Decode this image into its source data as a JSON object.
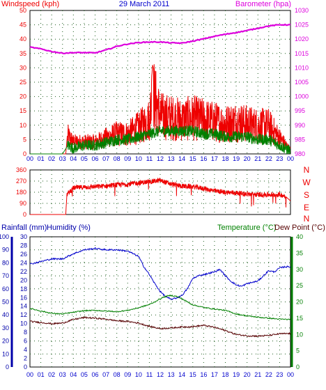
{
  "colors": {
    "red": "#ee0000",
    "blue": "#0000cc",
    "dkblue": "#0000aa",
    "green": "#008000",
    "magenta": "#dd00dd",
    "brown": "#550000",
    "grid": "#1a5a1a"
  },
  "chart_data": [
    {
      "type": "line",
      "title": "29 March 2011",
      "left_axis_label": "Windspeed (kph)",
      "right_axis_label": "Barometer (hpa)",
      "x_ticks": [
        "00",
        "01",
        "02",
        "03",
        "04",
        "05",
        "06",
        "07",
        "08",
        "09",
        "10",
        "11",
        "12",
        "13",
        "14",
        "15",
        "16",
        "17",
        "18",
        "19",
        "20",
        "21",
        "22",
        "23",
        "00"
      ],
      "left_ticks": [
        "0",
        "5",
        "10",
        "15",
        "20",
        "25",
        "30",
        "35",
        "40",
        "45",
        "50"
      ],
      "right_ticks": [
        "980",
        "985",
        "990",
        "995",
        "1000",
        "1005",
        "1010",
        "1015",
        "1020",
        "1025",
        "1030"
      ],
      "ylim_left": [
        0,
        50
      ],
      "ylim_right": [
        980,
        1030
      ],
      "grid": true,
      "series": [
        {
          "name": "Barometer",
          "axis": "right",
          "color_key": "magenta",
          "x": [
            0,
            1,
            2,
            3,
            4,
            5,
            6,
            7,
            8,
            9,
            10,
            11,
            12,
            13,
            14,
            15,
            16,
            17,
            18,
            19,
            20,
            21,
            22,
            23,
            24
          ],
          "y": [
            1017.2,
            1016.6,
            1015.7,
            1015.1,
            1015.3,
            1015.3,
            1015.2,
            1016.2,
            1017.5,
            1018.3,
            1018.8,
            1019.0,
            1019.0,
            1018.7,
            1018.6,
            1019.3,
            1020.1,
            1021.0,
            1021.7,
            1022.3,
            1023.0,
            1023.8,
            1024.6,
            1025.0,
            1025.0
          ]
        },
        {
          "name": "Wind gust",
          "axis": "left",
          "color_key": "red",
          "x": [
            0,
            1,
            2,
            3,
            3.3,
            3.5,
            4,
            5,
            6,
            7,
            8,
            9,
            10,
            11,
            11.3,
            12,
            13,
            14,
            15,
            16,
            17,
            18,
            19,
            20,
            21,
            22,
            23,
            24
          ],
          "y": [
            0,
            0,
            0,
            0,
            0,
            9,
            6,
            6,
            6,
            8,
            10,
            10,
            13,
            17,
            31,
            19,
            18,
            17,
            18,
            17,
            16,
            15,
            16,
            15,
            14,
            14,
            8,
            2
          ]
        },
        {
          "name": "Wind speed",
          "axis": "left",
          "color_key": "green",
          "x": [
            0,
            1,
            2,
            3,
            3.5,
            4,
            5,
            6,
            7,
            8,
            9,
            10,
            11,
            12,
            13,
            14,
            15,
            16,
            17,
            18,
            19,
            20,
            21,
            22,
            23,
            24
          ],
          "y": [
            0,
            0,
            0,
            0,
            3,
            2,
            3,
            3,
            4,
            5,
            5,
            6,
            7,
            8,
            8,
            8,
            8,
            7,
            7,
            6,
            6,
            6,
            5,
            5,
            3,
            1
          ]
        }
      ]
    },
    {
      "type": "line",
      "title": "",
      "left_ticks": [
        "0",
        "90",
        "180",
        "270",
        "360"
      ],
      "right_ticks": [
        "N",
        "E",
        "S",
        "W",
        "N"
      ],
      "x_ticks": [],
      "ylim": [
        0,
        360
      ],
      "grid": true,
      "series": [
        {
          "name": "Wind direction",
          "color_key": "red",
          "x": [
            0,
            2,
            3.3,
            3.4,
            4,
            5,
            6,
            7,
            8,
            9,
            10,
            11,
            12,
            13,
            14,
            15,
            16,
            17,
            18,
            19,
            20,
            21,
            22,
            23,
            23.5,
            24
          ],
          "y": [
            0,
            0,
            0,
            160,
            215,
            220,
            225,
            230,
            240,
            245,
            255,
            265,
            275,
            245,
            230,
            225,
            210,
            190,
            180,
            175,
            165,
            160,
            160,
            160,
            150,
            110
          ]
        }
      ]
    },
    {
      "type": "line",
      "title": "",
      "rainfall_label": "Rainfall (mm)",
      "humidity_label": "Humidity (%)",
      "temperature_label": "Temperature (°C)",
      "dewpoint_label": "Dew Point (°C)",
      "x_ticks": [
        "00",
        "01",
        "02",
        "03",
        "04",
        "05",
        "06",
        "07",
        "08",
        "09",
        "10",
        "11",
        "12",
        "13",
        "14",
        "15",
        "16",
        "17",
        "18",
        "19",
        "20",
        "21",
        "22",
        "23",
        "00"
      ],
      "humidity_ticks": [
        "0",
        "10",
        "20",
        "30",
        "40",
        "50",
        "60",
        "70",
        "80",
        "90",
        "100"
      ],
      "rainfall_ticks": [
        "0",
        "2",
        "4",
        "6",
        "8",
        "10",
        "12",
        "14",
        "16",
        "18",
        "20",
        "22",
        "24",
        "26",
        "28",
        "30"
      ],
      "temperature_ticks": [
        "0",
        "5",
        "10",
        "15",
        "20",
        "25",
        "30",
        "35",
        "40"
      ],
      "ylim_humidity": [
        0,
        100
      ],
      "ylim_temperature": [
        0,
        40
      ],
      "grid": true,
      "series": [
        {
          "name": "Humidity",
          "axis": "humidity",
          "color_key": "blue",
          "x": [
            0,
            1,
            2,
            3,
            4,
            5,
            6,
            7,
            8,
            9,
            10,
            10.5,
            11,
            11.5,
            12,
            12.5,
            13,
            13.5,
            14,
            14.5,
            15,
            15.5,
            16,
            16.5,
            17,
            17.5,
            18,
            18.5,
            19,
            19.5,
            20,
            20.5,
            21,
            21.5,
            22,
            22.5,
            23,
            23.5,
            24
          ],
          "y": [
            79,
            81,
            83,
            83,
            87,
            90,
            91,
            90,
            90,
            89,
            85,
            77,
            71,
            64,
            58,
            54,
            52,
            53,
            55,
            60,
            68,
            70,
            71,
            72,
            73,
            75,
            70,
            66,
            63,
            62,
            64,
            65,
            66,
            70,
            74,
            73,
            76,
            77,
            77
          ]
        },
        {
          "name": "Temperature",
          "axis": "temperature",
          "color_key": "green",
          "x": [
            0,
            1,
            2,
            3,
            4,
            5,
            6,
            7,
            8,
            9,
            10,
            11,
            11.5,
            12,
            12.5,
            13,
            13.5,
            14,
            14.5,
            15,
            16,
            17,
            18,
            19,
            20,
            21,
            22,
            23,
            24
          ],
          "y": [
            18,
            17.2,
            16.5,
            16.3,
            16.8,
            17.3,
            17.4,
            17.2,
            17.0,
            17.4,
            18.2,
            19.2,
            20.0,
            21.0,
            21.7,
            22.0,
            21.7,
            21.0,
            20.0,
            19.1,
            18.3,
            17.8,
            17.4,
            16.3,
            15.7,
            15.3,
            15.0,
            14.7,
            14.6
          ]
        },
        {
          "name": "Dew Point",
          "axis": "temperature",
          "color_key": "brown",
          "x": [
            0,
            1,
            2,
            3,
            4,
            5,
            6,
            7,
            8,
            9,
            10,
            11,
            12,
            13,
            14,
            15,
            16,
            17,
            18,
            19,
            20,
            21,
            22,
            23,
            24
          ],
          "y": [
            14.0,
            13.7,
            13.3,
            13.5,
            14.6,
            15.2,
            15.0,
            14.7,
            14.2,
            14.0,
            13.5,
            12.5,
            11.8,
            12.0,
            12.3,
            12.4,
            12.8,
            12.2,
            11.2,
            10.0,
            9.6,
            9.5,
            9.7,
            10.2,
            10.3
          ]
        }
      ]
    }
  ]
}
